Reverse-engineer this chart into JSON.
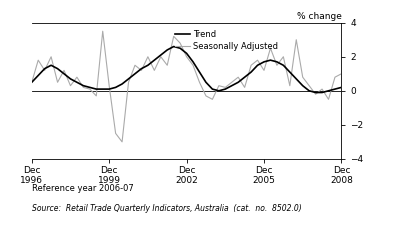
{
  "title": "",
  "ylabel": "% change",
  "ylim": [
    -4,
    4
  ],
  "yticks": [
    -4,
    -2,
    0,
    2,
    4
  ],
  "xlabel": "",
  "xtick_labels": [
    "Dec\n1996",
    "Dec\n1999",
    "Dec\n2002",
    "Dec\n2005",
    "Dec\n2008"
  ],
  "xtick_positions": [
    0,
    12,
    24,
    36,
    48
  ],
  "reference_text": "Reference year 2006-07",
  "source_text": "Source:  Retail Trade Quarterly Indicators, Australia  (cat.  no.  8502.0)",
  "legend_trend": "Trend",
  "legend_sa": "Seasonally Adjusted",
  "trend_color": "#000000",
  "sa_color": "#aaaaaa",
  "background_color": "#ffffff",
  "trend_data": [
    0.5,
    0.9,
    1.3,
    1.5,
    1.3,
    1.0,
    0.7,
    0.5,
    0.3,
    0.2,
    0.1,
    0.1,
    0.1,
    0.2,
    0.4,
    0.7,
    1.0,
    1.3,
    1.5,
    1.8,
    2.1,
    2.4,
    2.6,
    2.5,
    2.2,
    1.7,
    1.1,
    0.5,
    0.1,
    0.0,
    0.1,
    0.3,
    0.5,
    0.8,
    1.1,
    1.5,
    1.7,
    1.8,
    1.7,
    1.5,
    1.1,
    0.7,
    0.3,
    0.0,
    -0.1,
    -0.1,
    0.0,
    0.1,
    0.2
  ],
  "sa_data": [
    0.5,
    1.8,
    1.2,
    2.0,
    0.5,
    1.2,
    0.3,
    0.8,
    0.2,
    0.1,
    -0.3,
    3.5,
    0.3,
    -2.5,
    -3.0,
    0.5,
    1.5,
    1.2,
    2.0,
    1.2,
    2.0,
    1.5,
    3.2,
    2.8,
    2.0,
    1.5,
    0.5,
    -0.3,
    -0.5,
    0.3,
    0.2,
    0.5,
    0.8,
    0.2,
    1.5,
    1.8,
    1.2,
    2.5,
    1.5,
    2.0,
    0.3,
    3.0,
    0.8,
    0.3,
    -0.2,
    0.1,
    -0.5,
    0.8,
    1.0
  ]
}
